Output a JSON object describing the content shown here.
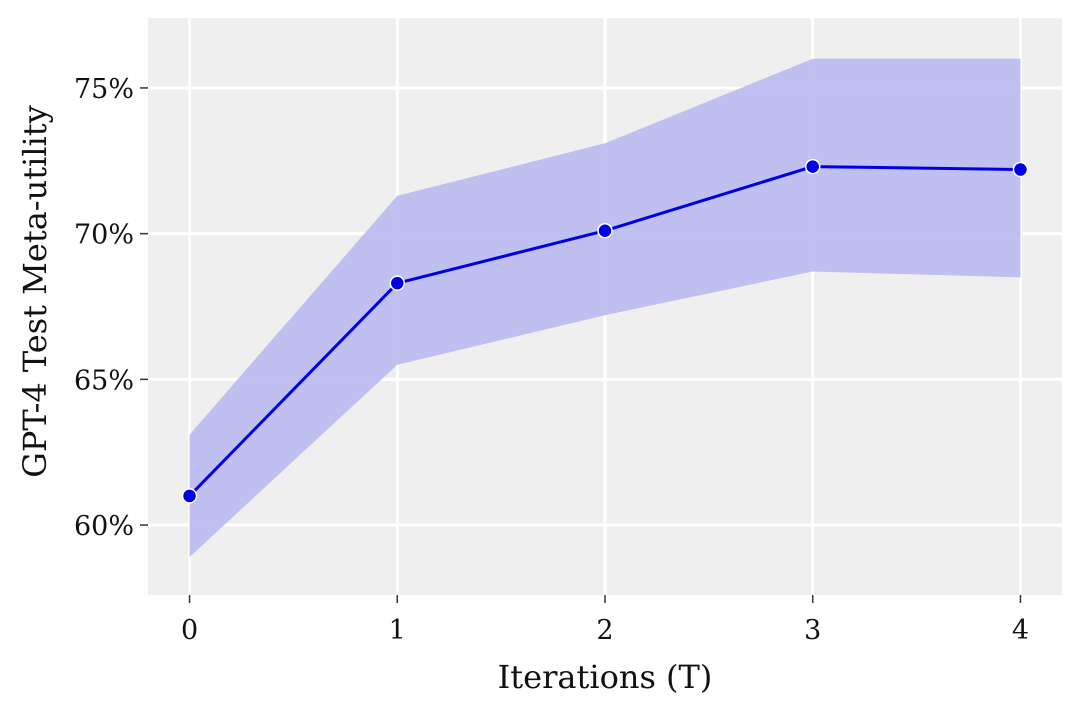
{
  "chart_data": {
    "type": "line",
    "title": "",
    "xlabel": "Iterations (T)",
    "ylabel": "GPT-4 Test Meta-utility",
    "x": [
      0,
      1,
      2,
      3,
      4
    ],
    "xticks": [
      "0",
      "1",
      "2",
      "3",
      "4"
    ],
    "yticks": [
      {
        "value": 60,
        "label": "60%"
      },
      {
        "value": 65,
        "label": "65%"
      },
      {
        "value": 70,
        "label": "70%"
      },
      {
        "value": 75,
        "label": "75%"
      }
    ],
    "xlim": [
      -0.2,
      4.2
    ],
    "ylim": [
      57.6,
      77.4
    ],
    "grid": true,
    "series": [
      {
        "values": [
          61.0,
          68.3,
          70.1,
          72.3,
          72.2
        ],
        "ci_lower": [
          58.9,
          65.5,
          67.2,
          68.7,
          68.5
        ],
        "ci_upper": [
          63.1,
          71.3,
          73.1,
          76.0,
          76.0
        ],
        "marker": "circle"
      }
    ],
    "colors": {
      "line": "#0000e6",
      "band": "#b9b9f0",
      "panel": "#efefef",
      "grid": "#ffffff"
    }
  }
}
